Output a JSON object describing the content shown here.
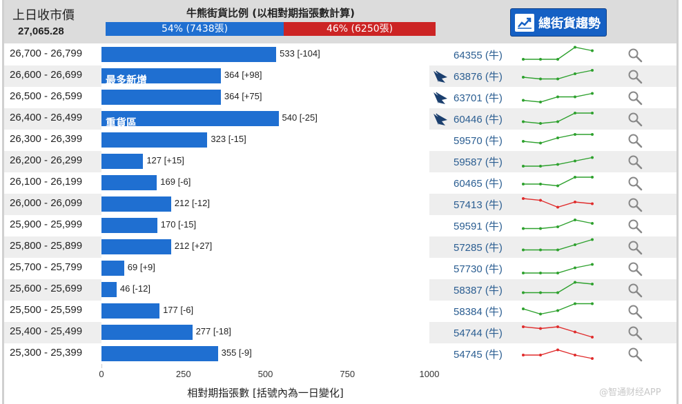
{
  "header": {
    "prev_close_label": "上日收市價",
    "prev_close_value": "27,065.28",
    "ratio_title": "牛熊街貨比例 (以相對期指張數計算)",
    "bull_label": "54% (7438張)",
    "bear_label": "46% (6250張)",
    "bull_fraction": 0.54,
    "trend_button": "總街貨趨勢"
  },
  "tags": {
    "most_increase": "最多新增",
    "heavy_zone": "重貨區"
  },
  "colors": {
    "bull": "#1f6fd1",
    "bear": "#cc2424",
    "up": "#2ea12e",
    "down": "#e02c2c",
    "count": "#2a5d91"
  },
  "chart_data": {
    "type": "bar",
    "orientation": "horizontal",
    "xlabel": "相對期指張數 [括號內為一日變化]",
    "xlim": [
      0,
      1000
    ],
    "xticks": [
      "0",
      "250",
      "500",
      "750",
      "1000"
    ],
    "categories": [
      "26,700 - 26,799",
      "26,600 - 26,699",
      "26,500 - 26,599",
      "26,400 - 26,499",
      "26,300 - 26,399",
      "26,200 - 26,299",
      "26,100 - 26,199",
      "26,000 - 26,099",
      "25,900 - 25,999",
      "25,800 - 25,899",
      "25,700 - 25,799",
      "25,600 - 25,699",
      "25,500 - 25,599",
      "25,400 - 25,499",
      "25,300 - 25,399"
    ],
    "values": [
      533,
      364,
      364,
      540,
      323,
      127,
      169,
      212,
      170,
      212,
      69,
      46,
      177,
      277,
      355
    ],
    "value_labels": [
      "533 [-104]",
      "364 [+98]",
      "364 [+75]",
      "540 [-25]",
      "323 [-15]",
      "127 [+15]",
      "169 [-6]",
      "212 [-12]",
      "170 [-15]",
      "212 [+27]",
      "69 [+9]",
      "46 [-12]",
      "177 [-6]",
      "277 [-18]",
      "355 [-9]"
    ]
  },
  "rows": [
    {
      "count": "64355 (牛)",
      "logo": false,
      "tag": "",
      "trend": "up",
      "spark": [
        2,
        2,
        2,
        9,
        7
      ]
    },
    {
      "count": "63876 (牛)",
      "logo": true,
      "tag": "most_increase",
      "trend": "up",
      "spark": [
        4,
        3,
        3,
        6,
        8
      ]
    },
    {
      "count": "63701 (牛)",
      "logo": true,
      "tag": "",
      "trend": "up",
      "spark": [
        3,
        2,
        5,
        5,
        7
      ]
    },
    {
      "count": "60446 (牛)",
      "logo": true,
      "tag": "heavy_zone",
      "trend": "up",
      "spark": [
        3,
        2,
        3,
        8,
        8
      ]
    },
    {
      "count": "59570 (牛)",
      "logo": false,
      "tag": "",
      "trend": "up",
      "spark": [
        4,
        3,
        6,
        8,
        8
      ]
    },
    {
      "count": "59587 (牛)",
      "logo": false,
      "tag": "",
      "trend": "up",
      "spark": [
        2,
        2,
        3,
        5,
        7
      ]
    },
    {
      "count": "60465 (牛)",
      "logo": false,
      "tag": "",
      "trend": "up",
      "spark": [
        4,
        4,
        3,
        8,
        8
      ]
    },
    {
      "count": "57413 (牛)",
      "logo": false,
      "tag": "",
      "trend": "down",
      "spark": [
        8,
        7,
        3,
        6,
        5
      ]
    },
    {
      "count": "59591 (牛)",
      "logo": false,
      "tag": "",
      "trend": "up",
      "spark": [
        3,
        3,
        4,
        8,
        6
      ]
    },
    {
      "count": "57285 (牛)",
      "logo": false,
      "tag": "",
      "trend": "up",
      "spark": [
        3,
        3,
        3,
        6,
        9
      ]
    },
    {
      "count": "57730 (牛)",
      "logo": false,
      "tag": "",
      "trend": "up",
      "spark": [
        2,
        2,
        2,
        5,
        7
      ]
    },
    {
      "count": "58387 (牛)",
      "logo": false,
      "tag": "",
      "trend": "up",
      "spark": [
        3,
        3,
        3,
        9,
        8
      ]
    },
    {
      "count": "58384 (牛)",
      "logo": false,
      "tag": "",
      "trend": "up",
      "spark": [
        6,
        3,
        5,
        9,
        9
      ]
    },
    {
      "count": "54744 (牛)",
      "logo": false,
      "tag": "",
      "trend": "down",
      "spark": [
        8,
        7,
        8,
        5,
        2
      ]
    },
    {
      "count": "54745 (牛)",
      "logo": false,
      "tag": "",
      "trend": "down",
      "spark": [
        4,
        4,
        7,
        4,
        2
      ]
    }
  ],
  "watermark": "@智通财经APP"
}
